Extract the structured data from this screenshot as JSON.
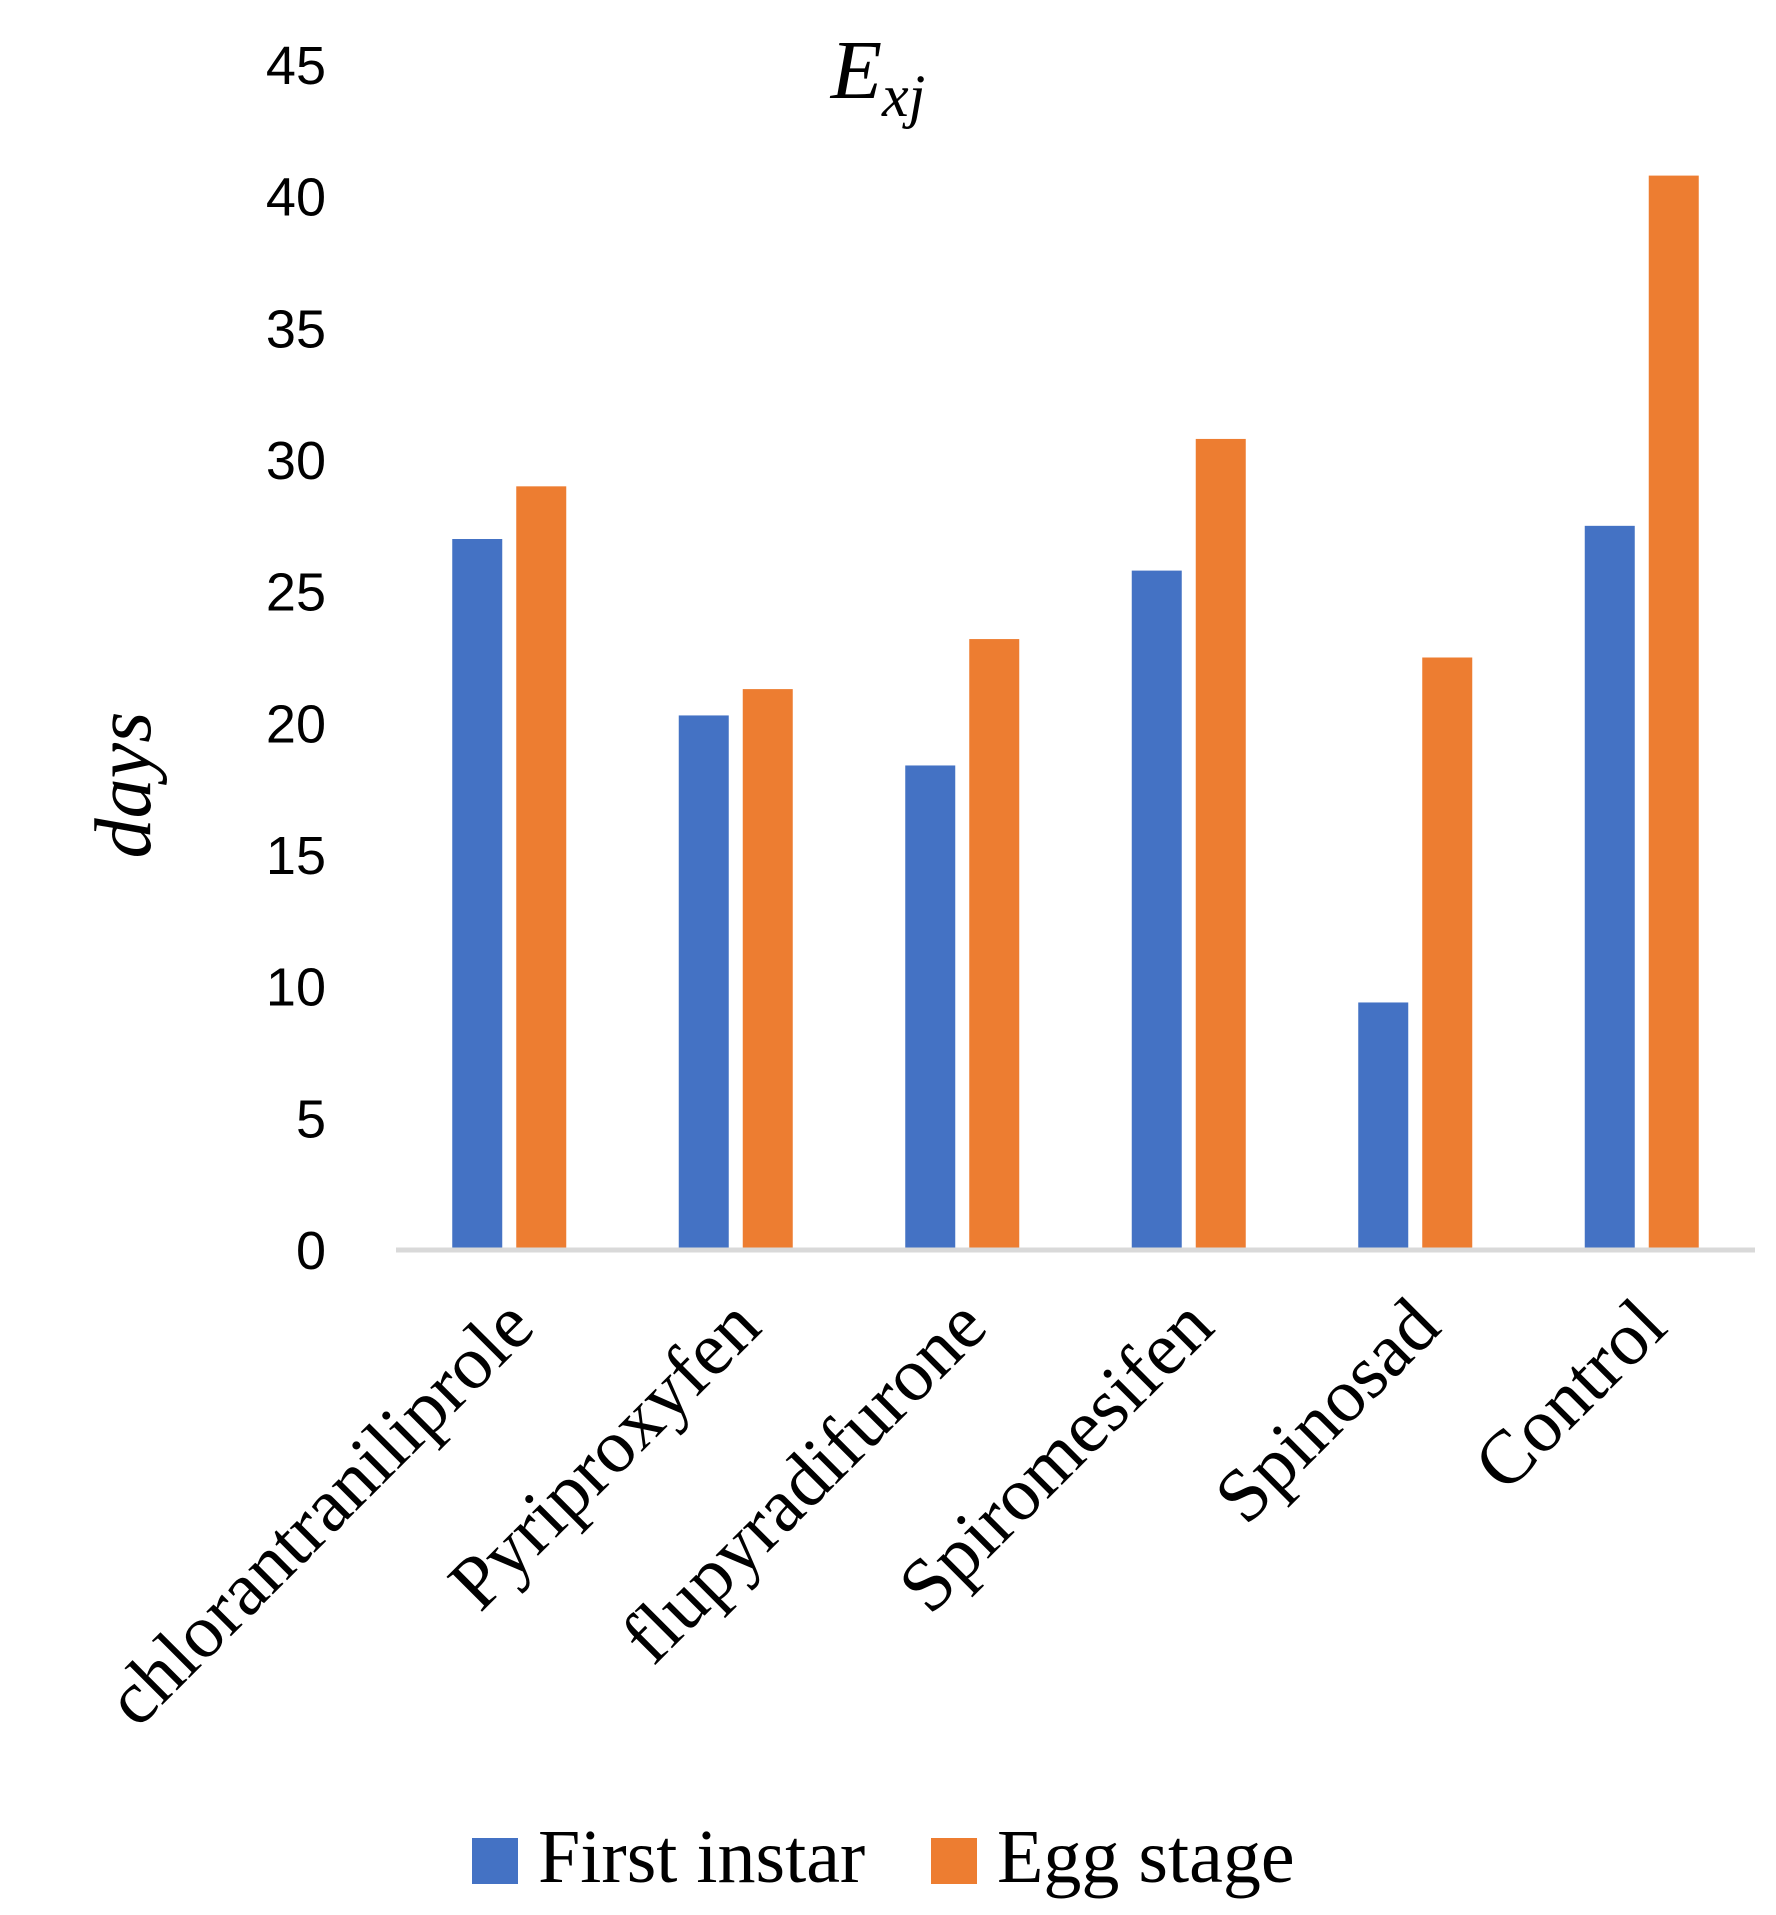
{
  "chart_data": {
    "type": "bar",
    "title": {
      "main": "E",
      "subscript": "xj"
    },
    "xlabel": "",
    "ylabel": "days",
    "ylim": [
      0,
      45
    ],
    "yticks": [
      0,
      5,
      10,
      15,
      20,
      25,
      30,
      35,
      40,
      45
    ],
    "grid": false,
    "legend_position": "bottom",
    "categories": [
      "chlorantraniliprole",
      "Pyriproxyfen",
      "flupyradifurone",
      "Spiromesifen",
      "Spinosad",
      "Control"
    ],
    "series": [
      {
        "name": "First instar",
        "color": "#4472C4",
        "values": [
          27.0,
          20.3,
          18.4,
          25.8,
          9.4,
          27.5
        ]
      },
      {
        "name": "Egg stage",
        "color": "#ED7D31",
        "values": [
          29.0,
          21.3,
          23.2,
          30.8,
          22.5,
          40.8
        ]
      }
    ],
    "axis_color": "#D9D9D9"
  }
}
